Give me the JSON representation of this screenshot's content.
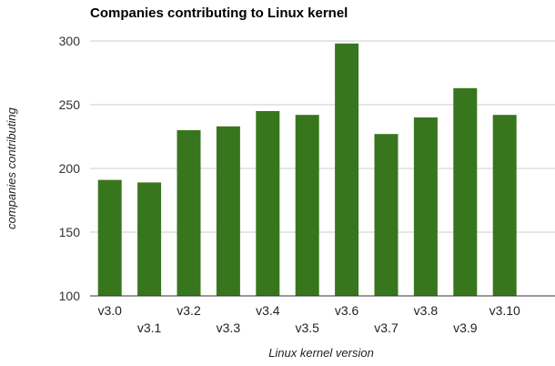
{
  "chart_data": {
    "type": "bar",
    "title": "Companies contributing to Linux kernel",
    "xlabel": "Linux kernel version",
    "ylabel": "companies contributing",
    "categories": [
      "v3.0",
      "v3.1",
      "v3.2",
      "v3.3",
      "v3.4",
      "v3.5",
      "v3.6",
      "v3.7",
      "v3.8",
      "v3.9",
      "v3.10"
    ],
    "values": [
      191,
      189,
      230,
      233,
      245,
      242,
      298,
      227,
      240,
      263,
      242
    ],
    "ylim": [
      100,
      300
    ],
    "yticks": [
      100,
      150,
      200,
      250,
      300
    ],
    "grid": true,
    "legend": "none",
    "bar_color": "#38761d"
  }
}
